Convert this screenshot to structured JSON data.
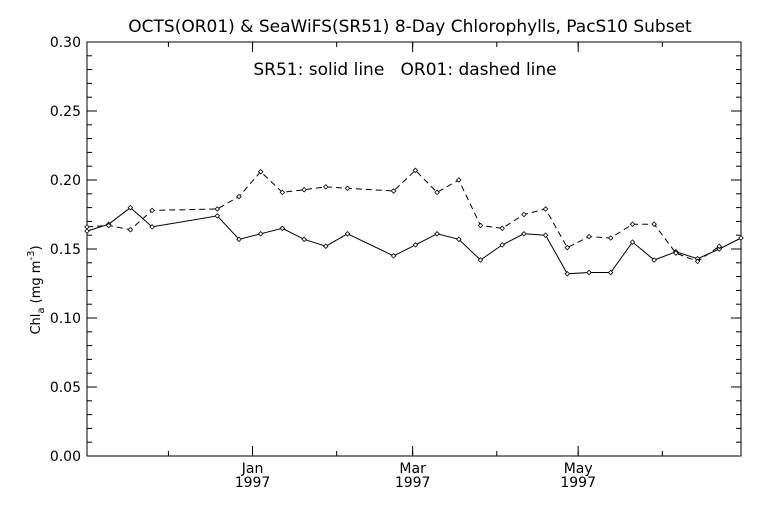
{
  "chart_data": {
    "type": "line",
    "title": "OCTS(OR01) & SeaWiFS(SR51) 8-Day Chlorophylls, PacS10 Subset",
    "annotation": "SR51: solid line   OR01: dashed line",
    "ylabel_main": "Chl",
    "ylabel_sub": "a",
    "ylabel_unit": " (mg m",
    "ylabel_exp": "-3",
    "ylabel_close": ")",
    "ylim": [
      0.0,
      0.3
    ],
    "yticks": [
      "0.00",
      "0.05",
      "0.10",
      "0.15",
      "0.20",
      "0.25",
      "0.30"
    ],
    "xlim": [
      "1996-11-01",
      "1997-06-30"
    ],
    "xticks": [
      {
        "month": "Jan",
        "year": "1997",
        "date": "1997-01-01"
      },
      {
        "month": "Mar",
        "year": "1997",
        "date": "1997-03-01"
      },
      {
        "month": "May",
        "year": "1997",
        "date": "1997-05-01"
      }
    ],
    "series": [
      {
        "name": "SR51",
        "style": "solid",
        "points": [
          [
            "1996-11-01",
            0.163
          ],
          [
            "1996-11-09",
            0.168
          ],
          [
            "1996-11-17",
            0.18
          ],
          [
            "1996-11-25",
            0.166
          ],
          [
            "1996-12-19",
            0.174
          ],
          [
            "1996-12-27",
            0.157
          ],
          [
            "1997-01-04",
            0.161
          ],
          [
            "1997-01-12",
            0.165
          ],
          [
            "1997-01-20",
            0.157
          ],
          [
            "1997-01-28",
            0.152
          ],
          [
            "1997-02-05",
            0.161
          ],
          [
            "1997-02-22",
            0.145
          ],
          [
            "1997-03-02",
            0.153
          ],
          [
            "1997-03-10",
            0.161
          ],
          [
            "1997-03-18",
            0.157
          ],
          [
            "1997-03-26",
            0.142
          ],
          [
            "1997-04-03",
            0.153
          ],
          [
            "1997-04-11",
            0.161
          ],
          [
            "1997-04-19",
            0.16
          ],
          [
            "1997-04-27",
            0.132
          ],
          [
            "1997-05-05",
            0.133
          ],
          [
            "1997-05-13",
            0.133
          ],
          [
            "1997-05-21",
            0.155
          ],
          [
            "1997-05-29",
            0.142
          ],
          [
            "1997-06-06",
            0.148
          ],
          [
            "1997-06-14",
            0.143
          ],
          [
            "1997-06-22",
            0.15
          ],
          [
            "1997-06-30",
            0.158
          ]
        ]
      },
      {
        "name": "OR01",
        "style": "dashed",
        "points": [
          [
            "1996-11-01",
            0.166
          ],
          [
            "1996-11-09",
            0.167
          ],
          [
            "1996-11-17",
            0.164
          ],
          [
            "1996-11-25",
            0.178
          ],
          [
            "1996-12-19",
            0.179
          ],
          [
            "1996-12-27",
            0.188
          ],
          [
            "1997-01-04",
            0.206
          ],
          [
            "1997-01-12",
            0.191
          ],
          [
            "1997-01-20",
            0.193
          ],
          [
            "1997-01-28",
            0.195
          ],
          [
            "1997-02-05",
            0.194
          ],
          [
            "1997-02-22",
            0.192
          ],
          [
            "1997-03-02",
            0.207
          ],
          [
            "1997-03-10",
            0.191
          ],
          [
            "1997-03-18",
            0.2
          ],
          [
            "1997-03-26",
            0.167
          ],
          [
            "1997-04-03",
            0.165
          ],
          [
            "1997-04-11",
            0.175
          ],
          [
            "1997-04-19",
            0.179
          ],
          [
            "1997-04-27",
            0.151
          ],
          [
            "1997-05-05",
            0.159
          ],
          [
            "1997-05-13",
            0.158
          ],
          [
            "1997-05-21",
            0.168
          ],
          [
            "1997-05-29",
            0.168
          ],
          [
            "1997-06-06",
            0.147
          ],
          [
            "1997-06-14",
            0.141
          ],
          [
            "1997-06-22",
            0.152
          ]
        ]
      }
    ],
    "grid": false,
    "legend": "none"
  }
}
